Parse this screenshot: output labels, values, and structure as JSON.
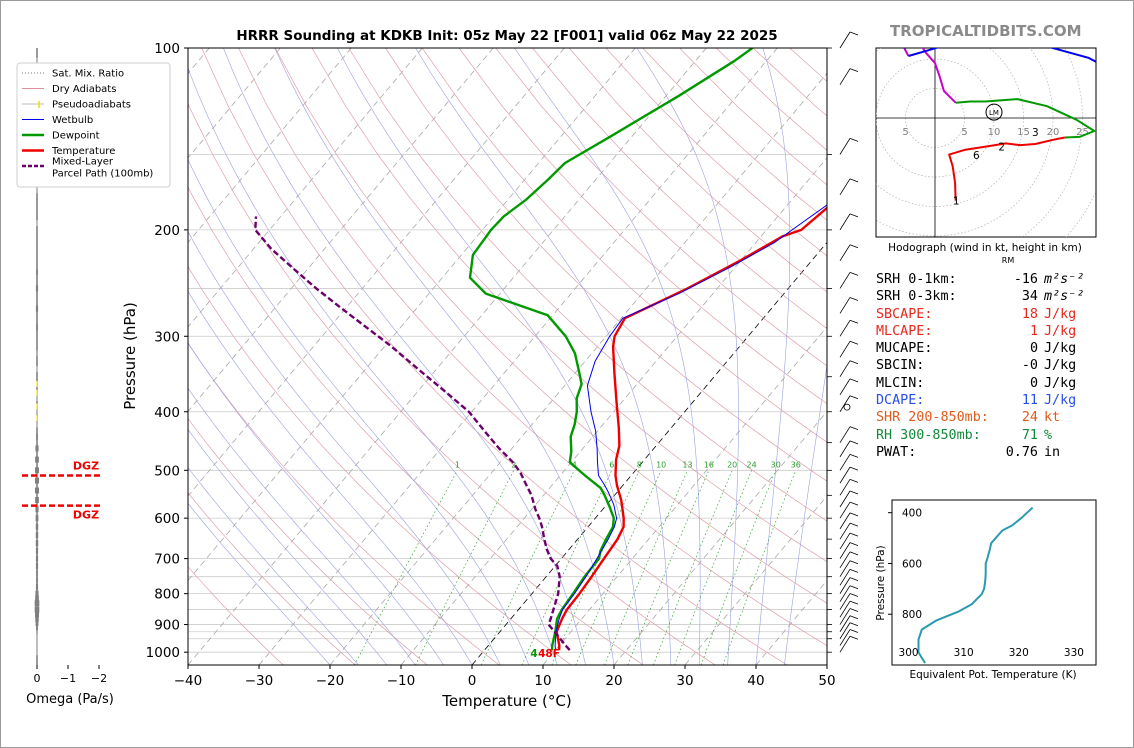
{
  "title": "HRRR Sounding at KDKB Init: 05z May 22 [F001] valid 06z May 22 2025",
  "site": "TROPICALTIDBITS.COM",
  "chart_data": [
    {
      "type": "line",
      "name": "skew-t",
      "xlabel": "Temperature (°C)",
      "ylabel": "Pressure (hPa)",
      "xlim": [
        -40,
        50
      ],
      "ylim": [
        1050,
        100
      ],
      "y_scale": "log",
      "x_ticks": [
        "−40",
        "−30",
        "−20",
        "−10",
        "0",
        "10",
        "20",
        "30",
        "40",
        "50"
      ],
      "y_ticks": [
        "100",
        "200",
        "300",
        "400",
        "500",
        "600",
        "700",
        "800",
        "900",
        "1000"
      ],
      "mixing_ratio_labels": [
        "1",
        "2",
        "4",
        "6",
        "8",
        "10",
        "13",
        "16",
        "20",
        "24",
        "30",
        "36"
      ],
      "legend": {
        "placement": "left",
        "entries": [
          {
            "label": "Sat. Mix. Ratio",
            "color": "#7a7a7a",
            "style": "dotted"
          },
          {
            "label": "Dry Adiabats",
            "color": "#d9909a",
            "style": "solid"
          },
          {
            "label": "Pseudoadiabats",
            "color": "#bdbdbd",
            "style": "solid"
          },
          {
            "label": "Wetbulb",
            "color": "#0000ee",
            "style": "solid"
          },
          {
            "label": "Dewpoint",
            "color": "#009900",
            "style": "solid"
          },
          {
            "label": "Temperature",
            "color": "#ee0000",
            "style": "solid"
          },
          {
            "label": "Mixed-Layer Parcel Path (100mb)",
            "color": "#6a006a",
            "style": "dashed"
          }
        ]
      },
      "series": [
        {
          "name": "Temperature",
          "color": "#ee0000",
          "points": [
            [
              10.5,
              992
            ],
            [
              10,
              975
            ],
            [
              8,
              925
            ],
            [
              7.2,
              880
            ],
            [
              6.8,
              850
            ],
            [
              6.7,
              800
            ],
            [
              6.4,
              750
            ],
            [
              6,
              700
            ],
            [
              5.6,
              650
            ],
            [
              5,
              620
            ],
            [
              4,
              600
            ],
            [
              1.5,
              560
            ],
            [
              -0.8,
              530
            ],
            [
              -2.2,
              510
            ],
            [
              -4,
              480
            ],
            [
              -5.2,
              455
            ],
            [
              -7.4,
              425
            ],
            [
              -10.8,
              385
            ],
            [
              -14.5,
              345
            ],
            [
              -17.8,
              312
            ],
            [
              -18.8,
              300
            ],
            [
              -19.5,
              280
            ],
            [
              -14.2,
              250
            ],
            [
              -10.1,
              225
            ],
            [
              -7,
              205
            ],
            [
              -5.1,
              200
            ],
            [
              -3.8,
              180
            ],
            [
              -2.5,
              160
            ],
            [
              -1.4,
              150
            ],
            [
              -0.6,
              140
            ],
            [
              0.3,
              130
            ],
            [
              1,
              120
            ],
            [
              2,
              110
            ],
            [
              2.5,
              100
            ]
          ]
        },
        {
          "name": "Dewpoint",
          "color": "#009900",
          "points": [
            [
              9.5,
              992
            ],
            [
              9,
              975
            ],
            [
              7.8,
              925
            ],
            [
              6.5,
              880
            ],
            [
              6.1,
              850
            ],
            [
              5.8,
              800
            ],
            [
              5.4,
              750
            ],
            [
              5.3,
              700
            ],
            [
              4.6,
              680
            ],
            [
              4,
              650
            ],
            [
              3.5,
              620
            ],
            [
              2.6,
              600
            ],
            [
              0.7,
              575
            ],
            [
              -1.4,
              550
            ],
            [
              -2.8,
              535
            ],
            [
              -6.5,
              510
            ],
            [
              -10.2,
              485
            ],
            [
              -11.3,
              465
            ],
            [
              -13.1,
              440
            ],
            [
              -14,
              420
            ],
            [
              -15.2,
              400
            ],
            [
              -16.8,
              380
            ],
            [
              -17.8,
              360
            ],
            [
              -20,
              340
            ],
            [
              -22.4,
              320
            ],
            [
              -25.7,
              300
            ],
            [
              -30.7,
              277
            ],
            [
              -42,
              255
            ],
            [
              -46.1,
              240
            ],
            [
              -48.4,
              220
            ],
            [
              -48.8,
              200
            ],
            [
              -48.6,
              190
            ],
            [
              -47.4,
              178
            ],
            [
              -46.7,
              165
            ],
            [
              -46.3,
              155
            ],
            [
              -43,
              140
            ],
            [
              -38.2,
              120
            ],
            [
              -34.5,
              105
            ],
            [
              -33.5,
              100
            ]
          ]
        },
        {
          "name": "Wetbulb",
          "color": "#0000ee",
          "points": [
            [
              10,
              992
            ],
            [
              9.4,
              975
            ],
            [
              7.9,
              925
            ],
            [
              6.8,
              880
            ],
            [
              6.2,
              850
            ],
            [
              6,
              800
            ],
            [
              5.6,
              750
            ],
            [
              5,
              700
            ],
            [
              4.3,
              650
            ],
            [
              3.7,
              620
            ],
            [
              3,
              600
            ],
            [
              1,
              570
            ],
            [
              -1.1,
              545
            ],
            [
              -2.5,
              530
            ],
            [
              -4.6,
              510
            ],
            [
              -6.3,
              485
            ],
            [
              -8,
              460
            ],
            [
              -10.3,
              430
            ],
            [
              -13.2,
              400
            ],
            [
              -16.8,
              362
            ],
            [
              -18.6,
              330
            ],
            [
              -19.5,
              300
            ],
            [
              -19.8,
              280
            ],
            [
              -14.8,
              255
            ],
            [
              -10.6,
              230
            ],
            [
              -7.4,
              210
            ],
            [
              -6.4,
              200
            ],
            [
              -4.2,
              180
            ],
            [
              -3.2,
              165
            ],
            [
              -1.9,
              150
            ],
            [
              0.2,
              130
            ],
            [
              1.2,
              120
            ],
            [
              2.3,
              110
            ],
            [
              2.6,
              100
            ]
          ]
        },
        {
          "name": "Mixed-Layer Parcel Path (100mb)",
          "color": "#6a006a",
          "points": [
            [
              12,
              992
            ],
            [
              10.9,
              975
            ],
            [
              7.7,
              925
            ],
            [
              6,
              900
            ],
            [
              5.6,
              880
            ],
            [
              4.9,
              850
            ],
            [
              3.7,
              800
            ],
            [
              1.9,
              750
            ],
            [
              0.3,
              720
            ],
            [
              -1.5,
              700
            ],
            [
              -3.2,
              675
            ],
            [
              -4.7,
              650
            ],
            [
              -6.5,
              620
            ],
            [
              -7.9,
              600
            ],
            [
              -9.5,
              580
            ],
            [
              -11.7,
              550
            ],
            [
              -14,
              525
            ],
            [
              -15.9,
              505
            ],
            [
              -18.2,
              485
            ],
            [
              -21.8,
              460
            ],
            [
              -26,
              430
            ],
            [
              -30.4,
              400
            ],
            [
              -36.2,
              370
            ],
            [
              -42.6,
              340
            ],
            [
              -49.5,
              310
            ],
            [
              -54.8,
              290
            ],
            [
              -60.5,
              270
            ],
            [
              -66.5,
              250
            ],
            [
              -72,
              232
            ],
            [
              -77.5,
              215
            ],
            [
              -82,
              200
            ],
            [
              -83.5,
              190
            ]
          ]
        }
      ],
      "surface_labels": [
        "4",
        "48F"
      ]
    },
    {
      "type": "bar",
      "name": "omega",
      "xlabel": "Omega (Pa/s)",
      "x_ticks": [
        "0",
        "−1",
        "−2"
      ],
      "dgz_label": "DGZ",
      "dgz_pressures": [
        510,
        572
      ],
      "pressures": [
        105,
        125,
        150,
        172,
        195,
        215,
        235,
        250,
        270,
        290,
        320,
        340,
        360,
        380,
        400,
        420,
        440,
        460,
        480,
        500,
        520,
        540,
        560,
        580,
        600,
        620,
        640,
        660,
        680,
        700,
        720,
        740,
        760,
        780,
        800,
        815,
        830,
        850,
        865,
        880,
        895,
        910,
        925,
        945,
        965,
        980,
        1000
      ],
      "values": [
        0.02,
        0.02,
        0.02,
        0.02,
        0.03,
        0.05,
        0.06,
        0.07,
        0.07,
        0.06,
        0.04,
        0.02,
        0.02,
        0.01,
        0.01,
        0.02,
        0.06,
        0.1,
        0.12,
        0.13,
        0.13,
        0.13,
        0.12,
        0.1,
        0.09,
        0.08,
        0.08,
        0.08,
        0.07,
        0.07,
        0.07,
        0.06,
        0.06,
        0.07,
        0.1,
        0.12,
        0.15,
        0.15,
        0.13,
        0.11,
        0.09,
        0.06,
        0.04,
        0.03,
        0.02,
        0.02,
        0.01
      ]
    },
    {
      "type": "scatter",
      "name": "hodograph",
      "caption": "Hodograph (wind in kt, height in km)",
      "rm_label": "RM",
      "ring_labels": [
        "5",
        "5",
        "10",
        "15",
        "20",
        "25"
      ],
      "height_labels": [
        "9",
        "6",
        "3",
        "2",
        "1"
      ],
      "storm_marker_label": "LM",
      "segments": [
        {
          "color": "#ee0000",
          "points": [
            [
              3.5,
              -14
            ],
            [
              3.4,
              -11
            ],
            [
              3,
              -8.2
            ],
            [
              2.4,
              -6.2
            ],
            [
              5,
              -5.4
            ],
            [
              9,
              -4.8
            ],
            [
              12,
              -4.3
            ],
            [
              14.5,
              -4.6
            ],
            [
              17,
              -4.4
            ],
            [
              20,
              -3.7
            ],
            [
              22,
              -3.3
            ]
          ]
        },
        {
          "color": "#009900",
          "points": [
            [
              22,
              -3.3
            ],
            [
              24.5,
              -3.2
            ],
            [
              27,
              -2.2
            ],
            [
              24,
              -0.3
            ],
            [
              19,
              2
            ],
            [
              14,
              3.2
            ],
            [
              8.5,
              2.8
            ],
            [
              6,
              2.8
            ],
            [
              3.5,
              2.6
            ]
          ]
        },
        {
          "color": "#cc00cc",
          "points": [
            [
              3.5,
              2.6
            ],
            [
              1.5,
              4.6
            ],
            [
              0.8,
              7
            ],
            [
              0,
              9.3
            ],
            [
              -1.5,
              11
            ],
            [
              -2.5,
              12.5
            ],
            [
              -4.5,
              13.8
            ],
            [
              -6,
              13.3
            ],
            [
              -4.5,
              10.5
            ]
          ]
        },
        {
          "color": "#0000ee",
          "points": [
            [
              -4.5,
              10.5
            ],
            [
              -1,
              11.5
            ],
            [
              4.5,
              13.2
            ],
            [
              8.5,
              14.3
            ],
            [
              12,
              13.8
            ],
            [
              18,
              12.4
            ],
            [
              26,
              10.2
            ],
            [
              31.5,
              7.3
            ]
          ]
        }
      ]
    },
    {
      "type": "line",
      "name": "theta-e",
      "xlabel": "Equivalent Pot. Temperature (K)",
      "ylabel": "Pressure (hPa)",
      "x_ticks": [
        "300",
        "310",
        "320",
        "330"
      ],
      "y_ticks": [
        "400",
        "600",
        "800"
      ],
      "xlim": [
        297,
        334
      ],
      "ylim": [
        1000,
        350
      ],
      "color": "#2a9ab0",
      "points": [
        [
          303,
          992
        ],
        [
          302.5,
          975
        ],
        [
          301.8,
          950
        ],
        [
          301.8,
          900
        ],
        [
          302.4,
          860
        ],
        [
          305,
          825
        ],
        [
          309,
          790
        ],
        [
          311.5,
          760
        ],
        [
          313.3,
          720
        ],
        [
          313.7,
          700
        ],
        [
          313.9,
          670
        ],
        [
          314,
          640
        ],
        [
          314,
          600
        ],
        [
          314.3,
          580
        ],
        [
          314.8,
          540
        ],
        [
          315,
          520
        ],
        [
          317,
          470
        ],
        [
          318.8,
          450
        ],
        [
          320.5,
          420
        ],
        [
          322,
          390
        ],
        [
          322.5,
          380
        ]
      ]
    }
  ],
  "stats": [
    {
      "label": "SRH 0-1km:",
      "value": "-16",
      "unit": "m²s⁻²",
      "color": "#000000"
    },
    {
      "label": "SRH 0-3km:",
      "value": "34",
      "unit": "m²s⁻²",
      "color": "#000000"
    },
    {
      "label": "SBCAPE:",
      "value": "18",
      "unit": "J/kg",
      "color": "#e8281e"
    },
    {
      "label": "MLCAPE:",
      "value": "1",
      "unit": "J/kg",
      "color": "#e8281e"
    },
    {
      "label": "MUCAPE:",
      "value": "0",
      "unit": "J/kg",
      "color": "#000000"
    },
    {
      "label": "SBCIN:",
      "value": "-0",
      "unit": "J/kg",
      "color": "#000000"
    },
    {
      "label": "MLCIN:",
      "value": "0",
      "unit": "J/kg",
      "color": "#000000"
    },
    {
      "label": "DCAPE:",
      "value": "11",
      "unit": "J/kg",
      "color": "#2a4fe8"
    },
    {
      "label": "SHR 200-850mb:",
      "value": "24",
      "unit": "kt",
      "color": "#e25a1c"
    },
    {
      "label": "RH 300-850mb:",
      "value": "71",
      "unit": "%",
      "color": "#138a3a"
    },
    {
      "label": "PWAT:",
      "value": "0.76",
      "unit": "in",
      "color": "#000000"
    }
  ]
}
